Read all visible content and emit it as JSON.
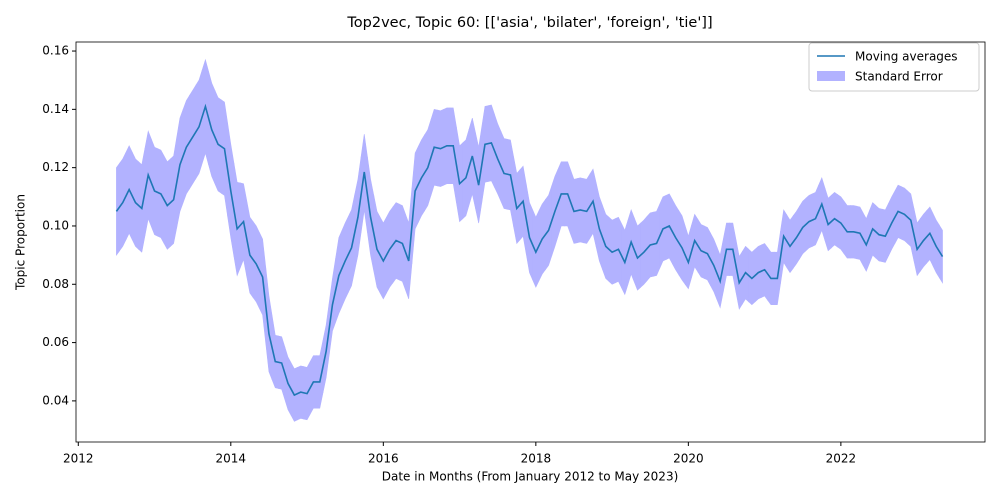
{
  "chart_data": {
    "type": "line",
    "title": "Top2vec, Topic 60: [['asia', 'bilater', 'foreign', 'tie']]",
    "xlabel": "Date in Months (From January 2012 to May 2023)",
    "ylabel": "Topic Proportion",
    "x": [
      2012.5,
      2012.583,
      2012.667,
      2012.75,
      2012.833,
      2012.917,
      2013,
      2013.083,
      2013.167,
      2013.25,
      2013.333,
      2013.417,
      2013.5,
      2013.583,
      2013.667,
      2013.75,
      2013.833,
      2013.917,
      2014,
      2014.083,
      2014.167,
      2014.25,
      2014.333,
      2014.417,
      2014.5,
      2014.583,
      2014.667,
      2014.75,
      2014.833,
      2014.917,
      2015,
      2015.083,
      2015.167,
      2015.25,
      2015.333,
      2015.417,
      2015.5,
      2015.583,
      2015.667,
      2015.75,
      2015.833,
      2015.917,
      2016,
      2016.083,
      2016.167,
      2016.25,
      2016.333,
      2016.417,
      2016.5,
      2016.583,
      2016.667,
      2016.75,
      2016.833,
      2016.917,
      2017,
      2017.083,
      2017.167,
      2017.25,
      2017.333,
      2017.417,
      2017.5,
      2017.583,
      2017.667,
      2017.75,
      2017.833,
      2017.917,
      2018,
      2018.083,
      2018.167,
      2018.25,
      2018.333,
      2018.417,
      2018.5,
      2018.583,
      2018.667,
      2018.75,
      2018.833,
      2018.917,
      2019,
      2019.083,
      2019.167,
      2019.25,
      2019.333,
      2019.417,
      2019.5,
      2019.583,
      2019.667,
      2019.75,
      2019.833,
      2019.917,
      2020,
      2020.083,
      2020.167,
      2020.25,
      2020.333,
      2020.417,
      2020.5,
      2020.583,
      2020.667,
      2020.75,
      2020.833,
      2020.917,
      2021,
      2021.083,
      2021.167,
      2021.25,
      2021.333,
      2021.417,
      2021.5,
      2021.583,
      2021.667,
      2021.75,
      2021.833,
      2021.917,
      2022,
      2022.083,
      2022.167,
      2022.25,
      2022.333,
      2022.417,
      2022.5,
      2022.583,
      2022.667,
      2022.75,
      2022.833,
      2022.917,
      2023,
      2023.083,
      2023.167,
      2023.25,
      2023.333
    ],
    "series": [
      {
        "name": "Moving averages",
        "color": "#1f77b4",
        "values": [
          0.105,
          0.108,
          0.1125,
          0.108,
          0.106,
          0.1175,
          0.112,
          0.111,
          0.107,
          0.109,
          0.121,
          0.127,
          0.1305,
          0.134,
          0.141,
          0.133,
          0.128,
          0.1265,
          0.112,
          0.099,
          0.1015,
          0.09,
          0.087,
          0.0825,
          0.063,
          0.0535,
          0.053,
          0.046,
          0.042,
          0.043,
          0.0425,
          0.0465,
          0.0465,
          0.057,
          0.073,
          0.083,
          0.088,
          0.0925,
          0.103,
          0.1185,
          0.103,
          0.092,
          0.088,
          0.092,
          0.095,
          0.094,
          0.088,
          0.112,
          0.1165,
          0.12,
          0.127,
          0.1265,
          0.1275,
          0.1275,
          0.1145,
          0.1165,
          0.124,
          0.114,
          0.128,
          0.1285,
          0.123,
          0.118,
          0.1175,
          0.106,
          0.1085,
          0.096,
          0.091,
          0.0955,
          0.0985,
          0.105,
          0.111,
          0.111,
          0.105,
          0.1055,
          0.105,
          0.1085,
          0.099,
          0.093,
          0.091,
          0.092,
          0.0875,
          0.0945,
          0.089,
          0.091,
          0.0935,
          0.094,
          0.099,
          0.1,
          0.096,
          0.0925,
          0.0875,
          0.095,
          0.0915,
          0.0905,
          0.0865,
          0.081,
          0.092,
          0.092,
          0.0805,
          0.084,
          0.082,
          0.084,
          0.085,
          0.082,
          0.082,
          0.0965,
          0.093,
          0.096,
          0.0995,
          0.1015,
          0.1025,
          0.1075,
          0.1005,
          0.1025,
          0.101,
          0.098,
          0.098,
          0.0975,
          0.0935,
          0.099,
          0.097,
          0.0965,
          0.101,
          0.105,
          0.104,
          0.102,
          0.092,
          0.095,
          0.0975,
          0.093,
          0.0895
        ]
      }
    ],
    "band": {
      "name": "Standard Error",
      "color": "#b2b2ff",
      "errors": [
        0.015,
        0.015,
        0.015,
        0.015,
        0.015,
        0.015,
        0.015,
        0.015,
        0.015,
        0.015,
        0.016,
        0.016,
        0.016,
        0.016,
        0.016,
        0.016,
        0.016,
        0.016,
        0.016,
        0.016,
        0.013,
        0.013,
        0.013,
        0.013,
        0.013,
        0.009,
        0.009,
        0.009,
        0.009,
        0.009,
        0.009,
        0.009,
        0.009,
        0.009,
        0.009,
        0.013,
        0.013,
        0.013,
        0.013,
        0.013,
        0.013,
        0.013,
        0.013,
        0.013,
        0.013,
        0.013,
        0.013,
        0.013,
        0.013,
        0.013,
        0.013,
        0.013,
        0.013,
        0.013,
        0.013,
        0.013,
        0.013,
        0.013,
        0.013,
        0.013,
        0.012,
        0.012,
        0.012,
        0.012,
        0.012,
        0.012,
        0.012,
        0.012,
        0.012,
        0.012,
        0.011,
        0.011,
        0.011,
        0.011,
        0.011,
        0.011,
        0.011,
        0.011,
        0.011,
        0.011,
        0.011,
        0.011,
        0.011,
        0.011,
        0.011,
        0.011,
        0.011,
        0.011,
        0.011,
        0.011,
        0.009,
        0.009,
        0.009,
        0.009,
        0.009,
        0.009,
        0.009,
        0.009,
        0.009,
        0.009,
        0.009,
        0.009,
        0.009,
        0.009,
        0.009,
        0.009,
        0.009,
        0.009,
        0.009,
        0.009,
        0.009,
        0.009,
        0.009,
        0.009,
        0.009,
        0.009,
        0.009,
        0.009,
        0.009,
        0.009,
        0.009,
        0.009,
        0.009,
        0.009,
        0.009,
        0.009,
        0.009,
        0.009,
        0.009,
        0.009,
        0.009
      ]
    },
    "xlim": [
      2011.97,
      2023.89
    ],
    "ylim": [
      0.0259,
      0.1631
    ],
    "xticks": [
      2012,
      2014,
      2016,
      2018,
      2020,
      2022
    ],
    "yticks": [
      0.04,
      0.06,
      0.08,
      {
        "value": 0.1,
        "label": "0.10"
      },
      0.12,
      0.14,
      0.16
    ],
    "legend": "upper right"
  }
}
